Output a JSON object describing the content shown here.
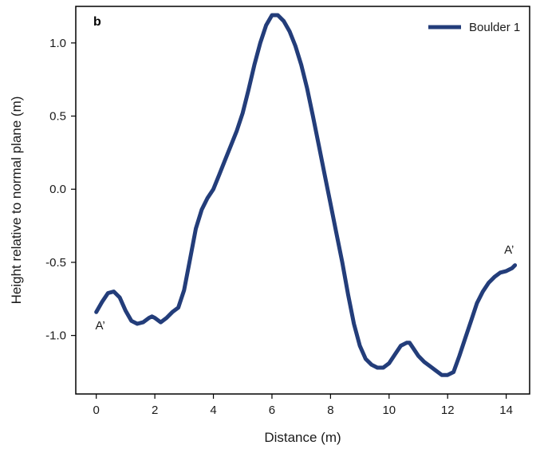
{
  "chart_data": {
    "type": "line",
    "panel_label": "b",
    "xlabel": "Distance (m)",
    "ylabel": "Height relative to normal plane (m)",
    "xlim": [
      -0.7,
      14.8
    ],
    "ylim": [
      -1.4,
      1.25
    ],
    "xticks": [
      0,
      2,
      4,
      6,
      8,
      10,
      12,
      14
    ],
    "yticks": [
      -1.0,
      -0.5,
      0.0,
      0.5,
      1.0
    ],
    "ytick_labels": [
      "-1.0",
      "-0.5",
      "0.0",
      "0.5",
      "1.0"
    ],
    "grid": false,
    "legend_position": "top-right",
    "series": [
      {
        "name": "Boulder 1",
        "color": "#233d7a",
        "x": [
          0.0,
          0.2,
          0.4,
          0.6,
          0.8,
          1.0,
          1.2,
          1.4,
          1.6,
          1.8,
          1.9,
          2.0,
          2.2,
          2.4,
          2.6,
          2.8,
          3.0,
          3.2,
          3.4,
          3.6,
          3.8,
          4.0,
          4.2,
          4.4,
          4.6,
          4.8,
          5.0,
          5.2,
          5.4,
          5.6,
          5.8,
          6.0,
          6.2,
          6.4,
          6.6,
          6.8,
          7.0,
          7.2,
          7.4,
          7.6,
          7.8,
          8.0,
          8.2,
          8.4,
          8.6,
          8.8,
          9.0,
          9.2,
          9.4,
          9.6,
          9.8,
          10.0,
          10.2,
          10.4,
          10.6,
          10.7,
          10.8,
          11.0,
          11.2,
          11.4,
          11.6,
          11.8,
          12.0,
          12.2,
          12.4,
          12.6,
          12.8,
          13.0,
          13.2,
          13.4,
          13.6,
          13.8,
          14.0,
          14.2,
          14.3
        ],
        "y": [
          -0.84,
          -0.77,
          -0.71,
          -0.7,
          -0.74,
          -0.83,
          -0.9,
          -0.92,
          -0.91,
          -0.88,
          -0.87,
          -0.88,
          -0.91,
          -0.88,
          -0.84,
          -0.81,
          -0.69,
          -0.48,
          -0.27,
          -0.14,
          -0.06,
          0.0,
          0.1,
          0.2,
          0.3,
          0.4,
          0.52,
          0.68,
          0.85,
          1.0,
          1.12,
          1.19,
          1.19,
          1.15,
          1.08,
          0.98,
          0.85,
          0.69,
          0.5,
          0.3,
          0.1,
          -0.1,
          -0.3,
          -0.5,
          -0.72,
          -0.92,
          -1.07,
          -1.16,
          -1.2,
          -1.22,
          -1.22,
          -1.19,
          -1.13,
          -1.07,
          -1.05,
          -1.05,
          -1.08,
          -1.14,
          -1.18,
          -1.21,
          -1.24,
          -1.27,
          -1.27,
          -1.25,
          -1.14,
          -1.02,
          -0.9,
          -0.78,
          -0.7,
          -0.64,
          -0.6,
          -0.57,
          -0.56,
          -0.54,
          -0.52
        ]
      }
    ],
    "annotations": [
      {
        "text": "A’",
        "x": 0.05,
        "y": -0.93
      },
      {
        "text": "A’",
        "x": 14.15,
        "y": -0.43
      }
    ]
  }
}
